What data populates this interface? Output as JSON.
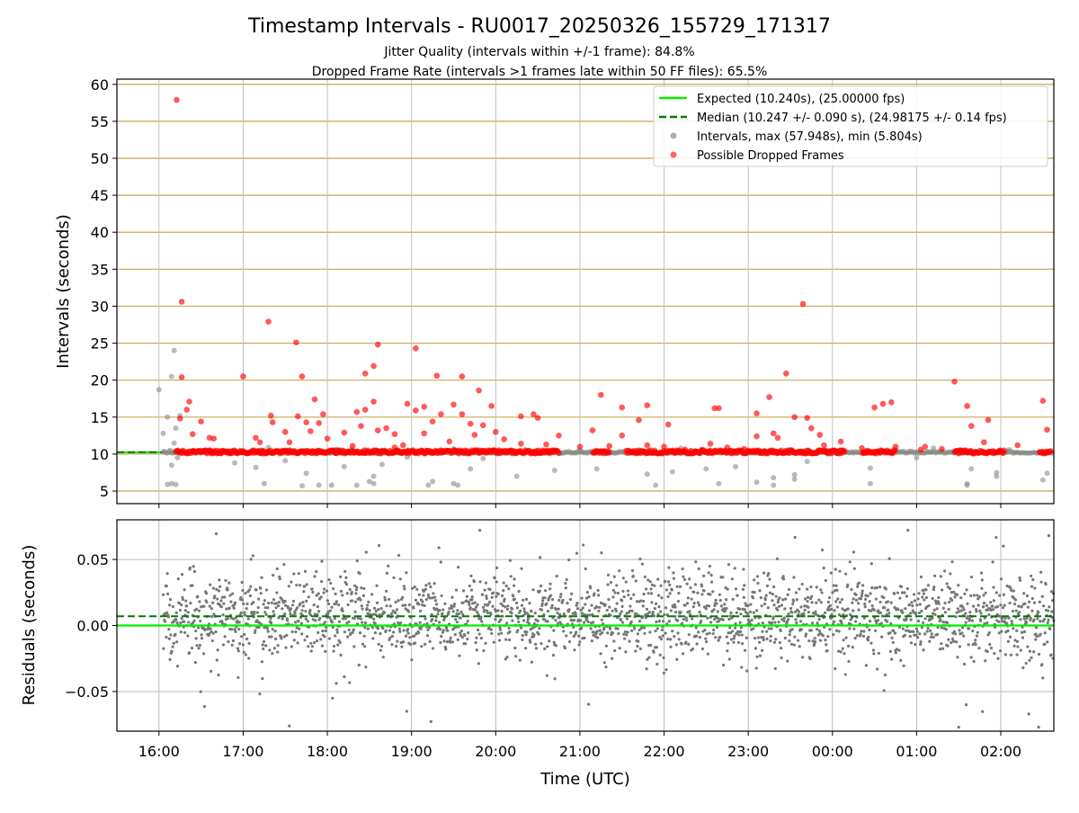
{
  "chart_data": [
    {
      "type": "scatter",
      "title": "Timestamp Intervals - RU0017_20250326_155729_171317",
      "subtitle_1": "Jitter Quality (intervals within +/-1 frame): 84.8%",
      "subtitle_2": "Dropped Frame Rate (intervals >1 frames late within 50 FF files): 65.5%",
      "ylabel": "Intervals (seconds)",
      "ylim": [
        3.3,
        60.7
      ],
      "yticks": [
        5,
        10,
        15,
        20,
        25,
        30,
        35,
        40,
        45,
        50,
        55,
        60
      ],
      "xlim_hours": [
        15.5,
        26.63
      ],
      "xticks_hours": [
        16,
        17,
        18,
        19,
        20,
        21,
        22,
        23,
        24,
        25,
        26
      ],
      "expected_interval": 10.24,
      "median_interval": 10.247,
      "legend_position": "upper right",
      "legend": [
        "Expected (10.240s), (25.00000 fps)",
        "Median (10.247 +/- 0.090 s), (24.98175 +/- 0.14 fps)",
        "Intervals, max (57.948s), min (5.804s)",
        "Possible Dropped Frames"
      ],
      "colors": {
        "expected": "#00ee00",
        "median": "#007a00",
        "intervals": "#8c8c8c",
        "dropped": "#ff0000",
        "grid": "#c8a850"
      },
      "series": [
        {
          "name": "Possible Dropped Frames",
          "points": [
            [
              16.21,
              57.9
            ],
            [
              16.27,
              30.6
            ],
            [
              16.27,
              20.4
            ],
            [
              16.25,
              14.8
            ],
            [
              16.33,
              16.0
            ],
            [
              16.36,
              17.1
            ],
            [
              16.4,
              12.7
            ],
            [
              16.5,
              14.4
            ],
            [
              16.6,
              12.2
            ],
            [
              16.65,
              12.1
            ],
            [
              17.0,
              20.5
            ],
            [
              17.15,
              12.2
            ],
            [
              17.3,
              27.9
            ],
            [
              17.33,
              15.2
            ],
            [
              17.35,
              14.3
            ],
            [
              17.5,
              13.0
            ],
            [
              17.55,
              11.6
            ],
            [
              17.63,
              25.1
            ],
            [
              17.65,
              15.1
            ],
            [
              17.7,
              20.5
            ],
            [
              17.75,
              14.3
            ],
            [
              17.8,
              13.1
            ],
            [
              17.85,
              17.4
            ],
            [
              17.9,
              14.2
            ],
            [
              17.95,
              15.4
            ],
            [
              18.0,
              12.1
            ],
            [
              18.2,
              12.9
            ],
            [
              18.3,
              11.1
            ],
            [
              18.35,
              15.7
            ],
            [
              18.4,
              13.8
            ],
            [
              18.45,
              16.0
            ],
            [
              18.45,
              20.9
            ],
            [
              18.55,
              21.9
            ],
            [
              18.6,
              24.8
            ],
            [
              18.55,
              17.1
            ],
            [
              18.6,
              13.2
            ],
            [
              18.7,
              13.5
            ],
            [
              18.8,
              12.7
            ],
            [
              18.9,
              11.2
            ],
            [
              18.95,
              16.8
            ],
            [
              19.05,
              24.3
            ],
            [
              19.05,
              15.9
            ],
            [
              19.15,
              12.8
            ],
            [
              19.25,
              14.4
            ],
            [
              19.3,
              20.6
            ],
            [
              19.35,
              15.4
            ],
            [
              19.45,
              11.7
            ],
            [
              19.5,
              16.7
            ],
            [
              19.6,
              20.5
            ],
            [
              19.6,
              15.4
            ],
            [
              19.7,
              14.1
            ],
            [
              19.75,
              12.6
            ],
            [
              19.8,
              18.6
            ],
            [
              19.85,
              13.9
            ],
            [
              19.95,
              16.5
            ],
            [
              20.0,
              13.0
            ],
            [
              20.1,
              12.0
            ],
            [
              20.3,
              11.4
            ],
            [
              20.45,
              15.4
            ],
            [
              20.5,
              14.9
            ],
            [
              20.6,
              11.3
            ],
            [
              20.75,
              12.5
            ],
            [
              21.15,
              13.2
            ],
            [
              21.25,
              18.0
            ],
            [
              21.35,
              11.1
            ],
            [
              21.5,
              12.5
            ],
            [
              21.5,
              16.3
            ],
            [
              21.7,
              14.6
            ],
            [
              21.8,
              16.6
            ],
            [
              21.8,
              11.2
            ],
            [
              22.0,
              11.0
            ],
            [
              22.05,
              14.0
            ],
            [
              22.25,
              10.6
            ],
            [
              22.45,
              10.6
            ],
            [
              22.55,
              11.4
            ],
            [
              22.6,
              16.2
            ],
            [
              22.65,
              16.2
            ],
            [
              22.75,
              10.9
            ],
            [
              23.1,
              15.5
            ],
            [
              23.1,
              12.4
            ],
            [
              23.25,
              17.7
            ],
            [
              23.45,
              20.9
            ],
            [
              23.55,
              15.0
            ],
            [
              23.65,
              30.3
            ],
            [
              23.7,
              14.9
            ],
            [
              23.75,
              13.5
            ],
            [
              23.85,
              12.6
            ],
            [
              23.9,
              11.2
            ],
            [
              24.5,
              16.3
            ],
            [
              24.6,
              16.8
            ],
            [
              24.7,
              17.0
            ],
            [
              24.75,
              11.0
            ],
            [
              25.05,
              10.6
            ],
            [
              25.1,
              11.0
            ],
            [
              25.45,
              19.8
            ],
            [
              25.6,
              16.5
            ],
            [
              25.65,
              13.8
            ],
            [
              25.8,
              11.6
            ],
            [
              25.85,
              14.6
            ],
            [
              26.5,
              17.2
            ],
            [
              26.55,
              13.3
            ],
            [
              23.3,
              12.8
            ],
            [
              23.35,
              12.2
            ],
            [
              20.3,
              15.1
            ],
            [
              19.15,
              16.4
            ],
            [
              18.8,
              10.9
            ],
            [
              17.2,
              11.6
            ],
            [
              21.0,
              11.0
            ],
            [
              22.95,
              10.7
            ],
            [
              24.1,
              11.7
            ],
            [
              24.35,
              10.8
            ],
            [
              26.2,
              11.2
            ],
            [
              25.3,
              10.7
            ]
          ]
        },
        {
          "name": "Intervals, max (57.948s), min (5.804s)",
          "points": [
            [
              16.1,
              5.9
            ],
            [
              16.15,
              6.0
            ],
            [
              16.2,
              5.9
            ],
            [
              16.15,
              20.5
            ],
            [
              16.18,
              24.0
            ],
            [
              16.25,
              15.2
            ],
            [
              16.2,
              13.5
            ],
            [
              16.13,
              10.5
            ],
            [
              16.18,
              11.5
            ],
            [
              16.22,
              9.5
            ],
            [
              16.15,
              8.5
            ],
            [
              16.0,
              18.7
            ],
            [
              16.05,
              12.8
            ],
            [
              16.1,
              15.0
            ],
            [
              16.9,
              8.8
            ],
            [
              17.15,
              8.2
            ],
            [
              17.25,
              6.0
            ],
            [
              17.5,
              9.1
            ],
            [
              17.7,
              5.7
            ],
            [
              17.75,
              7.4
            ],
            [
              17.9,
              5.8
            ],
            [
              18.05,
              5.8
            ],
            [
              18.2,
              8.3
            ],
            [
              18.35,
              5.8
            ],
            [
              18.5,
              6.3
            ],
            [
              18.55,
              6.0
            ],
            [
              18.55,
              7.0
            ],
            [
              18.65,
              8.6
            ],
            [
              18.95,
              9.6
            ],
            [
              19.2,
              5.8
            ],
            [
              19.25,
              6.3
            ],
            [
              19.5,
              6.0
            ],
            [
              19.55,
              5.8
            ],
            [
              19.7,
              8.0
            ],
            [
              19.85,
              9.4
            ],
            [
              20.25,
              7.0
            ],
            [
              20.7,
              7.8
            ],
            [
              21.2,
              8.0
            ],
            [
              21.8,
              7.3
            ],
            [
              21.9,
              5.8
            ],
            [
              22.1,
              7.6
            ],
            [
              22.5,
              8.0
            ],
            [
              22.65,
              6.0
            ],
            [
              22.85,
              8.3
            ],
            [
              23.1,
              6.2
            ],
            [
              23.3,
              5.8
            ],
            [
              23.3,
              6.8
            ],
            [
              23.55,
              7.2
            ],
            [
              23.7,
              9.0
            ],
            [
              23.55,
              6.6
            ],
            [
              24.45,
              8.1
            ],
            [
              24.45,
              6.0
            ],
            [
              25.0,
              9.5
            ],
            [
              25.6,
              6.0
            ],
            [
              25.6,
              5.8
            ],
            [
              25.65,
              8.0
            ],
            [
              25.95,
              7.0
            ],
            [
              25.95,
              7.5
            ],
            [
              26.5,
              6.5
            ],
            [
              26.55,
              7.4
            ],
            [
              26.1,
              10.6
            ],
            [
              25.2,
              10.8
            ],
            [
              24.1,
              10.5
            ],
            [
              22.2,
              10.8
            ],
            [
              21.0,
              10.5
            ],
            [
              18.1,
              10.6
            ],
            [
              17.3,
              10.9
            ],
            [
              19.5,
              10.7
            ]
          ]
        }
      ]
    },
    {
      "type": "scatter",
      "xlabel": "Time (UTC)",
      "ylabel": "Residuals (seconds)",
      "ylim": [
        -0.08,
        0.08
      ],
      "yticks": [
        -0.05,
        0.0,
        0.05
      ],
      "ytick_labels": [
        "−0.05",
        "0.00",
        "0.05"
      ],
      "xlim_hours": [
        15.5,
        26.63
      ],
      "xticks_hours": [
        16,
        17,
        18,
        19,
        20,
        21,
        22,
        23,
        24,
        25,
        26
      ],
      "xtick_labels": [
        "16:00",
        "17:00",
        "18:00",
        "19:00",
        "20:00",
        "21:00",
        "22:00",
        "23:00",
        "00:00",
        "01:00",
        "02:00"
      ],
      "expected_residual": 0.0,
      "median_residual": 0.007,
      "colors": {
        "expected": "#00ee00",
        "median": "#007a00",
        "residuals": "#777777",
        "grid": "#bbbbbb"
      },
      "residuals_summary": {
        "time_range_hours": [
          16.05,
          26.63
        ],
        "center": 0.007,
        "core_spread": 0.015
      }
    }
  ]
}
